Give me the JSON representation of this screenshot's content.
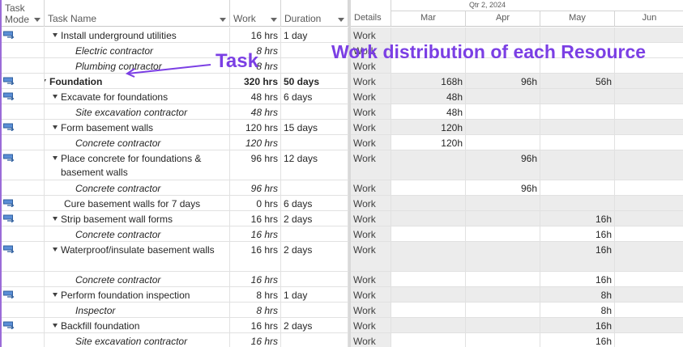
{
  "header": {
    "task_mode": "Task Mode",
    "task_name": "Task Name",
    "work": "Work",
    "duration": "Duration",
    "details": "Details",
    "quarter": "Qtr 2, 2024",
    "months": [
      "Mar",
      "Apr",
      "May",
      "Jun"
    ]
  },
  "annotations": {
    "task": "Task",
    "work_distribution": "Work distribution of each Resource"
  },
  "rows": [
    {
      "name": "Install underground utilities",
      "work": "16 hrs",
      "duration": "1 day",
      "detail": "Work",
      "mar": "",
      "apr": "",
      "may": "",
      "jun": ""
    },
    {
      "name": "Electric contractor",
      "work": "8 hrs",
      "duration": "",
      "detail": "Work",
      "mar": "",
      "apr": "",
      "may": "",
      "jun": ""
    },
    {
      "name": "Plumbing contractor",
      "work": "8 hrs",
      "duration": "",
      "detail": "Work",
      "mar": "",
      "apr": "",
      "may": "",
      "jun": ""
    },
    {
      "name": "Foundation",
      "work": "320 hrs",
      "duration": "50 days",
      "detail": "Work",
      "mar": "168h",
      "apr": "96h",
      "may": "56h",
      "jun": ""
    },
    {
      "name": "Excavate for foundations",
      "work": "48 hrs",
      "duration": "6 days",
      "detail": "Work",
      "mar": "48h",
      "apr": "",
      "may": "",
      "jun": ""
    },
    {
      "name": "Site excavation contractor",
      "work": "48 hrs",
      "duration": "",
      "detail": "Work",
      "mar": "48h",
      "apr": "",
      "may": "",
      "jun": ""
    },
    {
      "name": "Form basement walls",
      "work": "120 hrs",
      "duration": "15 days",
      "detail": "Work",
      "mar": "120h",
      "apr": "",
      "may": "",
      "jun": ""
    },
    {
      "name": "Concrete contractor",
      "work": "120 hrs",
      "duration": "",
      "detail": "Work",
      "mar": "120h",
      "apr": "",
      "may": "",
      "jun": ""
    },
    {
      "name": "Place concrete for foundations & basement walls",
      "work": "96 hrs",
      "duration": "12 days",
      "detail": "Work",
      "mar": "",
      "apr": "96h",
      "may": "",
      "jun": ""
    },
    {
      "name": "Concrete contractor",
      "work": "96 hrs",
      "duration": "",
      "detail": "Work",
      "mar": "",
      "apr": "96h",
      "may": "",
      "jun": ""
    },
    {
      "name": "Cure basement walls for 7 days",
      "work": "0 hrs",
      "duration": "6 days",
      "detail": "Work",
      "mar": "",
      "apr": "",
      "may": "",
      "jun": ""
    },
    {
      "name": "Strip basement wall forms",
      "work": "16 hrs",
      "duration": "2 days",
      "detail": "Work",
      "mar": "",
      "apr": "",
      "may": "16h",
      "jun": ""
    },
    {
      "name": "Concrete contractor",
      "work": "16 hrs",
      "duration": "",
      "detail": "Work",
      "mar": "",
      "apr": "",
      "may": "16h",
      "jun": ""
    },
    {
      "name": "Waterproof/insulate basement walls",
      "work": "16 hrs",
      "duration": "2 days",
      "detail": "Work",
      "mar": "",
      "apr": "",
      "may": "16h",
      "jun": ""
    },
    {
      "name": "Concrete contractor",
      "work": "16 hrs",
      "duration": "",
      "detail": "Work",
      "mar": "",
      "apr": "",
      "may": "16h",
      "jun": ""
    },
    {
      "name": "Perform foundation inspection",
      "work": "8 hrs",
      "duration": "1 day",
      "detail": "Work",
      "mar": "",
      "apr": "",
      "may": "8h",
      "jun": ""
    },
    {
      "name": "Inspector",
      "work": "8 hrs",
      "duration": "",
      "detail": "Work",
      "mar": "",
      "apr": "",
      "may": "8h",
      "jun": ""
    },
    {
      "name": "Backfill foundation",
      "work": "16 hrs",
      "duration": "2 days",
      "detail": "Work",
      "mar": "",
      "apr": "",
      "may": "16h",
      "jun": ""
    },
    {
      "name": "Site excavation contractor",
      "work": "16 hrs",
      "duration": "",
      "detail": "Work",
      "mar": "",
      "apr": "",
      "may": "16h",
      "jun": ""
    }
  ]
}
